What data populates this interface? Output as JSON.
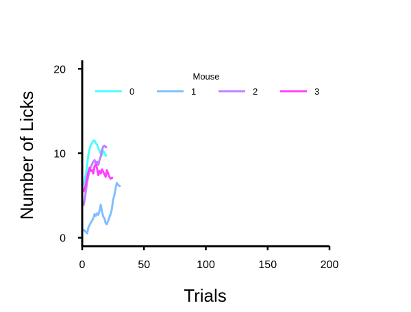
{
  "chart_data": {
    "type": "line",
    "title": "",
    "xlabel": "Trials",
    "ylabel": "Number of Licks",
    "xlim": [
      0,
      200
    ],
    "ylim": [
      -1,
      21
    ],
    "xticks": [
      0,
      50,
      100,
      150,
      200
    ],
    "yticks": [
      0,
      10,
      20
    ],
    "grid": false,
    "legend": {
      "title": "Mouse",
      "placement": "top"
    },
    "series": [
      {
        "name": "0",
        "color": "#4dfcff",
        "x": [
          1,
          2,
          3,
          4,
          5,
          6,
          7,
          8,
          9,
          10,
          11,
          12,
          13,
          14,
          15,
          16,
          17,
          18,
          19,
          20
        ],
        "y": [
          6.2,
          6.8,
          7.5,
          8.6,
          9.8,
          10.5,
          11.0,
          11.2,
          11.5,
          11.5,
          11.2,
          11.0,
          10.6,
          10.3,
          10.0,
          9.8,
          10.3,
          10.0,
          9.7,
          9.8
        ]
      },
      {
        "name": "1",
        "color": "#80bfff",
        "x": [
          1,
          2,
          3,
          4,
          5,
          6,
          7,
          8,
          9,
          10,
          11,
          12,
          13,
          14,
          15,
          16,
          17,
          18,
          19,
          20,
          21,
          22,
          23,
          24,
          25,
          26,
          27,
          28,
          29,
          30,
          31
        ],
        "y": [
          1.0,
          0.8,
          0.7,
          0.5,
          1.2,
          1.5,
          1.8,
          2.0,
          2.3,
          2.8,
          2.6,
          2.9,
          2.7,
          3.2,
          3.9,
          3.1,
          2.5,
          2.3,
          1.7,
          1.6,
          2.0,
          2.4,
          2.8,
          3.4,
          4.5,
          5.0,
          5.8,
          6.5,
          6.3,
          6.1,
          6.1
        ]
      },
      {
        "name": "2",
        "color": "#c080ff",
        "x": [
          1,
          2,
          3,
          4,
          5,
          6,
          7,
          8,
          9,
          10,
          11,
          12,
          13,
          14,
          15,
          16,
          17,
          18,
          19,
          20
        ],
        "y": [
          3.8,
          4.5,
          5.5,
          6.6,
          7.3,
          8.1,
          8.4,
          8.7,
          9.0,
          9.2,
          8.8,
          9.0,
          8.6,
          9.2,
          9.6,
          10.4,
          10.8,
          10.9,
          10.7,
          10.8
        ]
      },
      {
        "name": "3",
        "color": "#ff40ff",
        "x": [
          1,
          2,
          3,
          4,
          5,
          6,
          7,
          8,
          9,
          10,
          11,
          12,
          13,
          14,
          15,
          16,
          17,
          18,
          19,
          20,
          21,
          22,
          23,
          24,
          25
        ],
        "y": [
          5.4,
          5.9,
          6.3,
          7.2,
          7.8,
          8.3,
          7.9,
          8.0,
          7.6,
          8.5,
          8.7,
          8.2,
          7.4,
          7.9,
          7.6,
          8.1,
          7.8,
          7.5,
          7.2,
          8.0,
          7.6,
          7.2,
          7.0,
          7.1,
          7.1
        ]
      }
    ]
  }
}
